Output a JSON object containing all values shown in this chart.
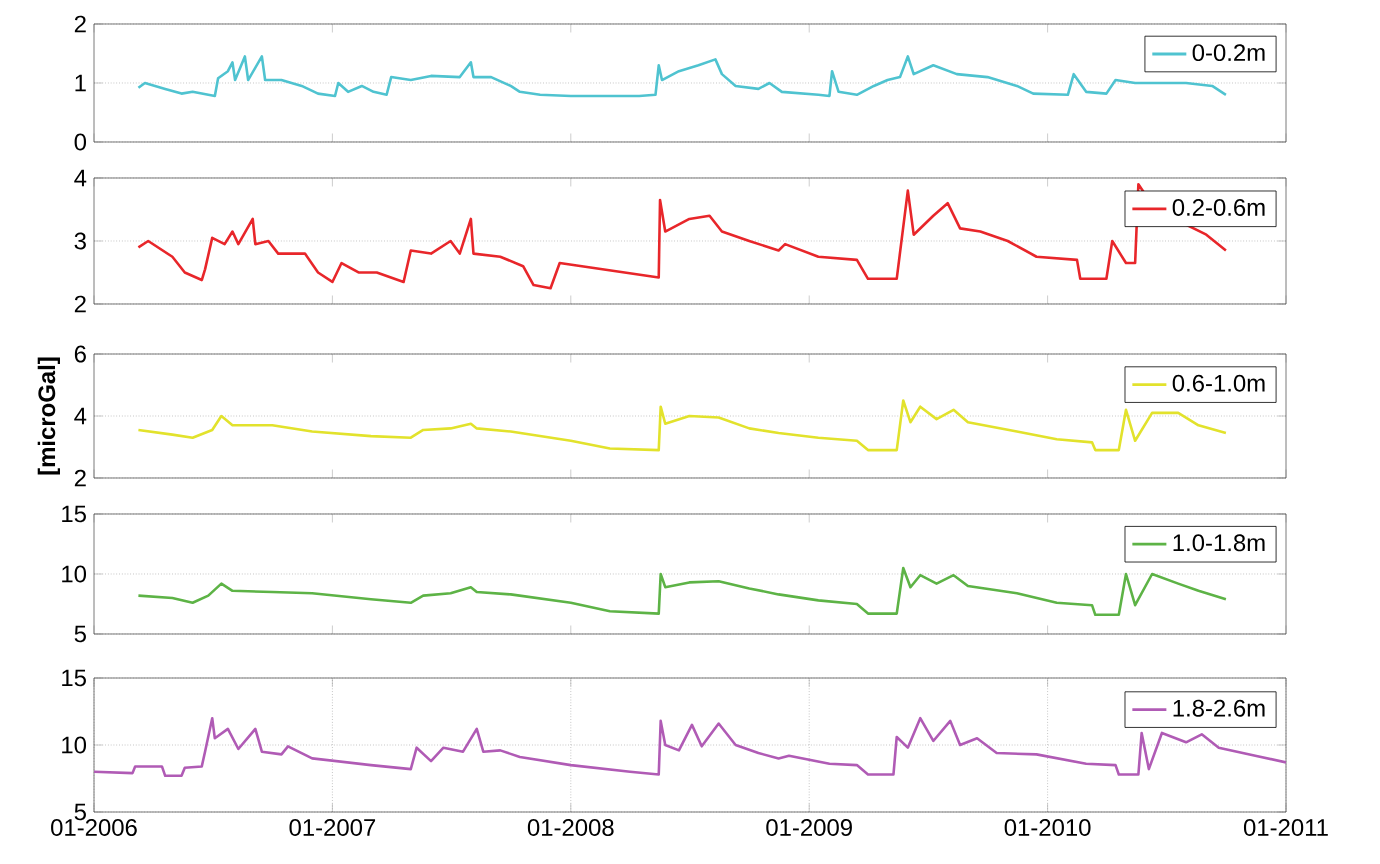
{
  "chart_data": [
    {
      "type": "line",
      "xlim": [
        "2006-01",
        "2011-01"
      ],
      "xticks": [
        {
          "value": "2006-01",
          "label": null
        },
        {
          "value": "2007-01",
          "label": null
        },
        {
          "value": "2008-01",
          "label": null
        },
        {
          "value": "2009-01",
          "label": null
        },
        {
          "value": "2010-01",
          "label": null
        },
        {
          "value": "2011-01",
          "label": null
        }
      ],
      "ylim": [
        0,
        2
      ],
      "yticks": [
        0,
        1,
        2
      ],
      "grid": "y",
      "legend": "top right",
      "tick_labels": "y",
      "series": [
        {
          "name": "0-0.2m",
          "color": "#4fc3d0",
          "x": [
            "2006-03-10",
            "2006-03-20",
            "2006-04-20",
            "2006-05-15",
            "2006-06-01",
            "2006-07-05",
            "2006-07-10",
            "2006-07-25",
            "2006-08-01",
            "2006-08-05",
            "2006-08-20",
            "2006-08-25",
            "2006-09-15",
            "2006-09-20",
            "2006-10-15",
            "2006-11-15",
            "2006-12-10",
            "2007-01-05",
            "2007-01-10",
            "2007-01-25",
            "2007-02-15",
            "2007-03-05",
            "2007-03-25",
            "2007-04-01",
            "2007-05-01",
            "2007-06-01",
            "2007-07-15",
            "2007-08-01",
            "2007-08-05",
            "2007-09-01",
            "2007-10-01",
            "2007-10-15",
            "2007-11-15",
            "2008-01-01",
            "2008-04-15",
            "2008-05-10",
            "2008-05-15",
            "2008-05-20",
            "2008-06-15",
            "2008-07-15",
            "2008-08-10",
            "2008-08-20",
            "2008-09-10",
            "2008-10-15",
            "2008-11-01",
            "2008-11-20",
            "2009-01-15",
            "2009-02-01",
            "2009-02-05",
            "2009-02-15",
            "2009-03-15",
            "2009-04-10",
            "2009-05-01",
            "2009-05-20",
            "2009-06-01",
            "2009-06-10",
            "2009-07-10",
            "2009-08-15",
            "2009-10-01",
            "2009-11-15",
            "2009-12-10",
            "2010-02-01",
            "2010-02-10",
            "2010-03-01",
            "2010-04-01",
            "2010-04-15",
            "2010-05-15",
            "2010-08-01",
            "2010-09-10",
            "2010-10-01"
          ],
          "values": [
            0.92,
            1.0,
            0.9,
            0.82,
            0.85,
            0.78,
            1.08,
            1.2,
            1.35,
            1.05,
            1.45,
            1.05,
            1.45,
            1.05,
            1.05,
            0.95,
            0.82,
            0.78,
            1.0,
            0.85,
            0.95,
            0.85,
            0.8,
            1.1,
            1.05,
            1.12,
            1.1,
            1.35,
            1.1,
            1.1,
            0.95,
            0.85,
            0.8,
            0.78,
            0.78,
            0.8,
            1.3,
            1.05,
            1.2,
            1.3,
            1.4,
            1.15,
            0.95,
            0.9,
            1.0,
            0.85,
            0.8,
            0.78,
            1.2,
            0.85,
            0.8,
            0.95,
            1.05,
            1.1,
            1.45,
            1.15,
            1.3,
            1.15,
            1.1,
            0.95,
            0.82,
            0.8,
            1.15,
            0.85,
            0.82,
            1.05,
            1.0,
            1.0,
            0.95,
            0.8
          ]
        }
      ]
    },
    {
      "type": "line",
      "xlim": [
        "2006-01",
        "2011-01"
      ],
      "xticks": [
        {
          "value": "2006-01",
          "label": null
        },
        {
          "value": "2007-01",
          "label": null
        },
        {
          "value": "2008-01",
          "label": null
        },
        {
          "value": "2009-01",
          "label": null
        },
        {
          "value": "2010-01",
          "label": null
        },
        {
          "value": "2011-01",
          "label": null
        }
      ],
      "ylim": [
        2,
        4
      ],
      "yticks": [
        2,
        3,
        4
      ],
      "grid": "y",
      "legend": "top right",
      "tick_labels": "y",
      "series": [
        {
          "name": "0.2-0.6m",
          "color": "#e8262a",
          "x": [
            "2006-03-10",
            "2006-03-25",
            "2006-05-01",
            "2006-05-20",
            "2006-06-15",
            "2006-06-20",
            "2006-07-01",
            "2006-07-20",
            "2006-08-01",
            "2006-08-10",
            "2006-09-01",
            "2006-09-05",
            "2006-09-25",
            "2006-10-10",
            "2006-11-20",
            "2006-12-10",
            "2007-01-01",
            "2007-01-15",
            "2007-02-10",
            "2007-03-10",
            "2007-04-20",
            "2007-05-01",
            "2007-06-01",
            "2007-07-01",
            "2007-07-15",
            "2007-08-01",
            "2007-08-05",
            "2007-09-15",
            "2007-10-20",
            "2007-11-05",
            "2007-12-01",
            "2007-12-15",
            "2008-05-15",
            "2008-05-17",
            "2008-05-25",
            "2008-07-01",
            "2008-08-01",
            "2008-08-20",
            "2008-10-01",
            "2008-11-15",
            "2008-11-25",
            "2009-01-15",
            "2009-03-15",
            "2009-04-01",
            "2009-05-15",
            "2009-06-01",
            "2009-06-10",
            "2009-07-10",
            "2009-08-01",
            "2009-08-20",
            "2009-09-20",
            "2009-11-01",
            "2009-12-15",
            "2010-02-15",
            "2010-02-20",
            "2010-04-01",
            "2010-04-10",
            "2010-05-01",
            "2010-05-15",
            "2010-05-20",
            "2010-06-15",
            "2010-07-15",
            "2010-09-01",
            "2010-10-01"
          ],
          "values": [
            2.9,
            3.0,
            2.75,
            2.5,
            2.38,
            2.55,
            3.05,
            2.95,
            3.15,
            2.95,
            3.35,
            2.95,
            3.0,
            2.8,
            2.8,
            2.5,
            2.35,
            2.65,
            2.5,
            2.5,
            2.35,
            2.85,
            2.8,
            3.0,
            2.8,
            3.35,
            2.8,
            2.75,
            2.6,
            2.3,
            2.25,
            2.65,
            2.42,
            3.65,
            3.15,
            3.35,
            3.4,
            3.15,
            3.0,
            2.85,
            2.95,
            2.75,
            2.7,
            2.4,
            2.4,
            3.8,
            3.1,
            3.4,
            3.6,
            3.2,
            3.15,
            3.0,
            2.75,
            2.7,
            2.4,
            2.4,
            3.0,
            2.65,
            2.65,
            3.9,
            3.5,
            null,
            3.1,
            2.85
          ]
        }
      ]
    },
    {
      "type": "line",
      "xlim": [
        "2006-01",
        "2011-01"
      ],
      "xticks": [
        {
          "value": "2006-01",
          "label": null
        },
        {
          "value": "2007-01",
          "label": null
        },
        {
          "value": "2008-01",
          "label": null
        },
        {
          "value": "2009-01",
          "label": null
        },
        {
          "value": "2010-01",
          "label": null
        },
        {
          "value": "2011-01",
          "label": null
        }
      ],
      "ylim": [
        2,
        6
      ],
      "yticks": [
        2,
        4,
        6
      ],
      "grid": "y",
      "legend": "top right",
      "tick_labels": "y",
      "ylabel": "[microGal]",
      "series": [
        {
          "name": "0.6-1.0m",
          "color": "#e2e22c",
          "x": [
            "2006-03-10",
            "2006-05-01",
            "2006-06-01",
            "2006-07-01",
            "2006-07-15",
            "2006-08-01",
            "2006-10-01",
            "2006-12-01",
            "2007-03-01",
            "2007-05-01",
            "2007-05-20",
            "2007-07-01",
            "2007-08-01",
            "2007-08-10",
            "2007-10-01",
            "2008-01-01",
            "2008-03-01",
            "2008-05-15",
            "2008-05-18",
            "2008-05-25",
            "2008-07-01",
            "2008-08-15",
            "2008-10-01",
            "2008-11-15",
            "2009-01-15",
            "2009-03-15",
            "2009-04-01",
            "2009-05-15",
            "2009-05-25",
            "2009-06-05",
            "2009-06-20",
            "2009-07-15",
            "2009-08-10",
            "2009-09-01",
            "2009-11-15",
            "2010-01-15",
            "2010-03-10",
            "2010-03-15",
            "2010-04-20",
            "2010-05-01",
            "2010-05-15",
            "2010-06-10",
            "2010-07-20",
            "2010-08-20",
            "2010-10-01"
          ],
          "values": [
            3.55,
            3.4,
            3.3,
            3.55,
            4.0,
            3.7,
            3.7,
            3.5,
            3.35,
            3.3,
            3.55,
            3.6,
            3.75,
            3.6,
            3.5,
            3.2,
            2.95,
            2.9,
            4.3,
            3.75,
            4.0,
            3.95,
            3.6,
            3.45,
            3.3,
            3.2,
            2.9,
            2.9,
            4.5,
            3.8,
            4.3,
            3.9,
            4.2,
            3.8,
            3.5,
            3.25,
            3.15,
            2.9,
            2.9,
            4.2,
            3.2,
            4.1,
            4.1,
            3.7,
            3.45
          ]
        }
      ]
    },
    {
      "type": "line",
      "xlim": [
        "2006-01",
        "2011-01"
      ],
      "xticks": [
        {
          "value": "2006-01",
          "label": null
        },
        {
          "value": "2007-01",
          "label": null
        },
        {
          "value": "2008-01",
          "label": null
        },
        {
          "value": "2009-01",
          "label": null
        },
        {
          "value": "2010-01",
          "label": null
        },
        {
          "value": "2011-01",
          "label": null
        }
      ],
      "ylim": [
        5,
        15
      ],
      "yticks": [
        5,
        10,
        15
      ],
      "grid": "y",
      "legend": "top right",
      "tick_labels": "y",
      "series": [
        {
          "name": "1.0-1.8m",
          "color": "#5db346",
          "x": [
            "2006-03-10",
            "2006-05-01",
            "2006-06-01",
            "2006-06-25",
            "2006-07-15",
            "2006-08-01",
            "2006-10-01",
            "2006-12-01",
            "2007-03-01",
            "2007-05-01",
            "2007-05-20",
            "2007-07-01",
            "2007-08-01",
            "2007-08-10",
            "2007-10-01",
            "2008-01-01",
            "2008-03-01",
            "2008-05-15",
            "2008-05-18",
            "2008-05-25",
            "2008-07-01",
            "2008-08-15",
            "2008-10-01",
            "2008-11-15",
            "2009-01-15",
            "2009-03-15",
            "2009-04-01",
            "2009-05-15",
            "2009-05-25",
            "2009-06-05",
            "2009-06-20",
            "2009-07-15",
            "2009-08-10",
            "2009-09-01",
            "2009-11-15",
            "2010-01-15",
            "2010-03-10",
            "2010-03-15",
            "2010-04-20",
            "2010-05-01",
            "2010-05-15",
            "2010-06-10",
            "2010-07-20",
            "2010-08-20",
            "2010-10-01"
          ],
          "values": [
            8.2,
            8.0,
            7.6,
            8.2,
            9.2,
            8.6,
            8.5,
            8.4,
            7.9,
            7.6,
            8.2,
            8.4,
            8.9,
            8.5,
            8.3,
            7.6,
            6.9,
            6.7,
            10.0,
            8.9,
            9.3,
            9.4,
            8.8,
            8.3,
            7.8,
            7.5,
            6.7,
            6.7,
            10.5,
            8.9,
            9.9,
            9.2,
            9.9,
            9.0,
            8.4,
            7.6,
            7.4,
            6.6,
            6.6,
            10.0,
            7.4,
            10.0,
            9.2,
            8.6,
            7.9
          ]
        }
      ]
    },
    {
      "type": "line",
      "xlim": [
        "2006-01",
        "2011-01"
      ],
      "xticks": [
        {
          "value": "2006-01",
          "label": "01-2006"
        },
        {
          "value": "2007-01",
          "label": "01-2007"
        },
        {
          "value": "2008-01",
          "label": "01-2008"
        },
        {
          "value": "2009-01",
          "label": "01-2009"
        },
        {
          "value": "2010-01",
          "label": "01-2010"
        },
        {
          "value": "2011-01",
          "label": "01-2011"
        }
      ],
      "ylim": [
        5,
        15
      ],
      "yticks": [
        5,
        10,
        15
      ],
      "grid": true,
      "legend": "top right",
      "series": [
        {
          "name": "1.8-2.6m",
          "color": "#b05bb5",
          "x": [
            "2006-01-01",
            "2006-03-01",
            "2006-03-05",
            "2006-04-15",
            "2006-04-20",
            "2006-05-15",
            "2006-05-20",
            "2006-06-15",
            "2006-06-20",
            "2006-07-01",
            "2006-07-05",
            "2006-07-25",
            "2006-08-10",
            "2006-09-05",
            "2006-09-15",
            "2006-10-15",
            "2006-10-25",
            "2006-12-01",
            "2007-03-01",
            "2007-05-01",
            "2007-05-10",
            "2007-06-01",
            "2007-06-20",
            "2007-07-20",
            "2007-08-10",
            "2007-08-20",
            "2007-09-15",
            "2007-10-15",
            "2008-01-01",
            "2008-04-01",
            "2008-05-15",
            "2008-05-18",
            "2008-05-25",
            "2008-06-15",
            "2008-07-05",
            "2008-07-20",
            "2008-08-15",
            "2008-09-10",
            "2008-10-15",
            "2008-11-15",
            "2008-12-01",
            "2009-02-01",
            "2009-03-15",
            "2009-04-01",
            "2009-05-10",
            "2009-05-15",
            "2009-06-01",
            "2009-06-20",
            "2009-07-10",
            "2009-08-05",
            "2009-08-20",
            "2009-09-15",
            "2009-10-15",
            "2009-12-15",
            "2010-03-01",
            "2010-04-15",
            "2010-04-20",
            "2010-05-20",
            "2010-05-25",
            "2010-06-05",
            "2010-06-25",
            "2010-08-01",
            "2010-08-25",
            "2010-09-20",
            "2010-11-15",
            "2011-01-01"
          ],
          "values": [
            8.0,
            7.9,
            8.4,
            8.4,
            7.7,
            7.7,
            8.3,
            8.4,
            9.5,
            12.0,
            10.5,
            11.2,
            9.7,
            11.2,
            9.5,
            9.3,
            9.9,
            9.0,
            8.5,
            8.2,
            9.8,
            8.8,
            9.8,
            9.5,
            11.2,
            9.5,
            9.6,
            9.1,
            8.5,
            8.0,
            7.8,
            11.8,
            10.0,
            9.6,
            11.5,
            9.9,
            11.6,
            10.0,
            9.4,
            9.0,
            9.2,
            8.6,
            8.5,
            7.8,
            7.8,
            10.6,
            9.8,
            12.0,
            10.3,
            11.8,
            10.0,
            10.5,
            9.4,
            9.3,
            8.6,
            8.5,
            7.8,
            7.8,
            10.9,
            8.2,
            10.9,
            10.2,
            10.8,
            9.8,
            9.2,
            8.7
          ]
        }
      ]
    }
  ]
}
